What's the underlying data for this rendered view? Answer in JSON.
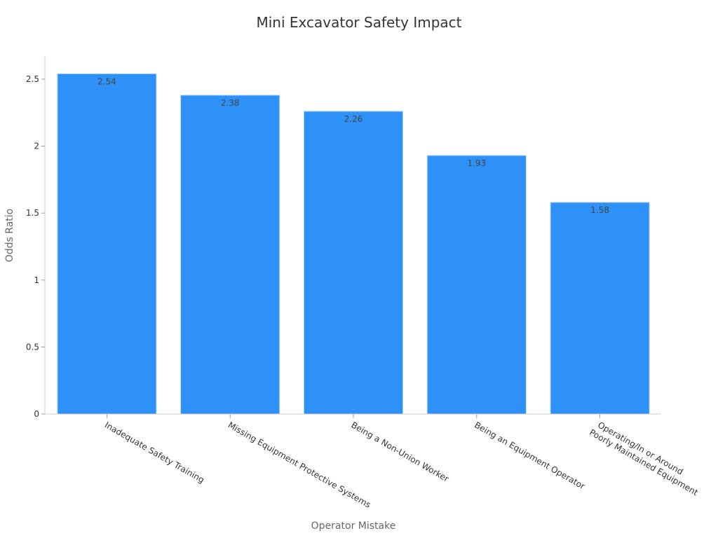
{
  "chart_data": {
    "type": "bar",
    "title": "Mini Excavator Safety Impact",
    "xlabel": "Operator Mistake",
    "ylabel": "Odds Ratio",
    "categories": [
      "Inadequate Safety Training",
      "Missing Equipment Protective Systems",
      "Being a Non-Union Worker",
      "Being an Equipment Operator",
      "Operating/In or Around\nPoorly Maintained Equipment"
    ],
    "values": [
      2.54,
      2.38,
      2.26,
      1.93,
      1.58
    ],
    "value_labels": [
      "2.54",
      "2.38",
      "2.26",
      "1.93",
      "1.58"
    ],
    "yticks": [
      "0",
      "0.5",
      "1",
      "1.5",
      "2",
      "2.5"
    ],
    "ylim": [
      0,
      2.67
    ],
    "grid": false,
    "legend": null,
    "bar_color": "#2e91f7"
  }
}
